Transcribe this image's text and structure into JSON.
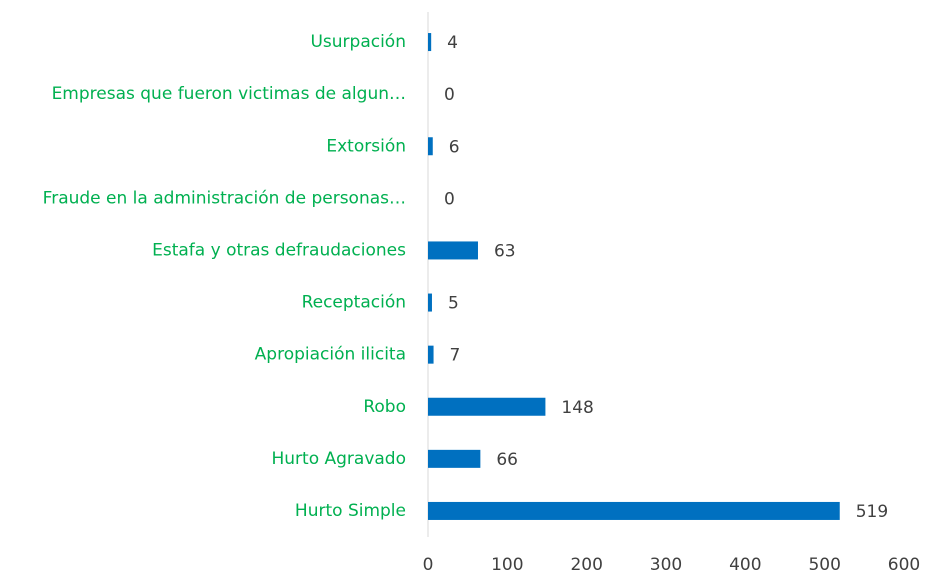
{
  "chart_data": {
    "type": "bar",
    "orientation": "horizontal",
    "categories": [
      "Usurpación",
      "Empresas que fueron victimas de algun…",
      "Extorsión",
      "Fraude en la administración de personas…",
      "Estafa y otras defraudaciones",
      "Receptación",
      "Apropiación ilicita",
      "Robo",
      "Hurto Agravado",
      "Hurto Simple"
    ],
    "values": [
      4,
      0,
      6,
      0,
      63,
      5,
      7,
      148,
      66,
      519
    ],
    "color": "#0070c0",
    "label_color": "#00b050",
    "xlim": [
      0,
      600
    ],
    "xticks": [
      0,
      100,
      200,
      300,
      400,
      500,
      600
    ],
    "grid": false
  }
}
